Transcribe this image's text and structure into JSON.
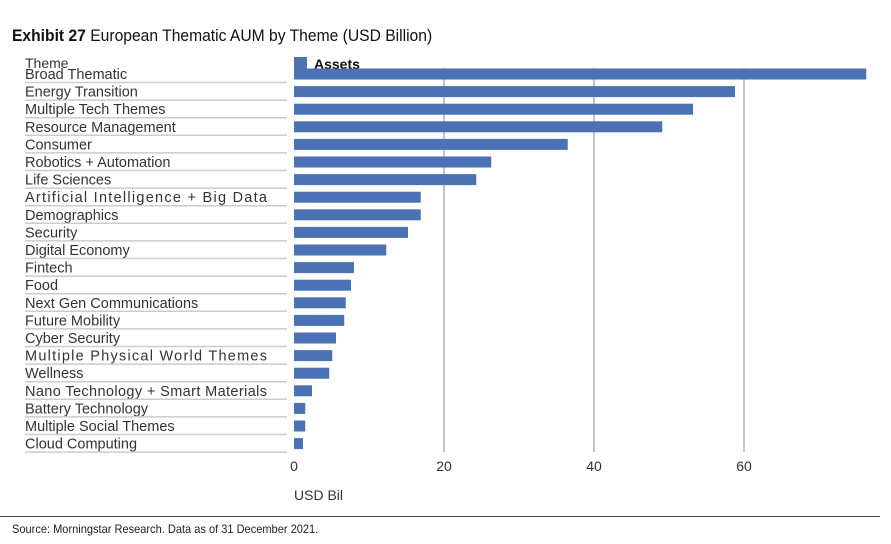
{
  "title": {
    "exhibit": "Exhibit 27",
    "text": "European Thematic AUM by Theme (USD Billion)"
  },
  "source": "Source: Morningstar Research. Data as of 31 December 2021.",
  "chart_data": {
    "type": "bar",
    "orientation": "horizontal",
    "category_header": "Theme",
    "categories": [
      "Broad Thematic",
      "Energy Transition",
      "Multiple Tech Themes",
      "Resource Management",
      "Consumer",
      "Robotics + Automation",
      "Life Sciences",
      "Artificial Intelligence + Big Data",
      "Demographics",
      "Security",
      "Digital Economy",
      "Fintech",
      "Food",
      "Next Gen Communications",
      "Future Mobility",
      "Cyber Security",
      "Multiple Physical World Themes",
      "Wellness",
      "Nano Technology + Smart Materials",
      "Battery Technology",
      "Multiple Social Themes",
      "Cloud Computing"
    ],
    "series": [
      {
        "name": "Assets",
        "values": [
          76.3,
          58.8,
          53.2,
          49.1,
          36.5,
          26.3,
          24.3,
          16.9,
          16.9,
          15.2,
          12.3,
          8.0,
          7.6,
          6.9,
          6.7,
          5.6,
          5.1,
          4.7,
          2.4,
          1.5,
          1.5,
          1.2
        ]
      }
    ],
    "xlabel": "USD Bil",
    "xlim": [
      0,
      76.3
    ],
    "xticks": [
      0,
      20,
      40,
      60
    ],
    "grid": true,
    "legend": "top-left",
    "bar_color": "#4a72b5"
  }
}
